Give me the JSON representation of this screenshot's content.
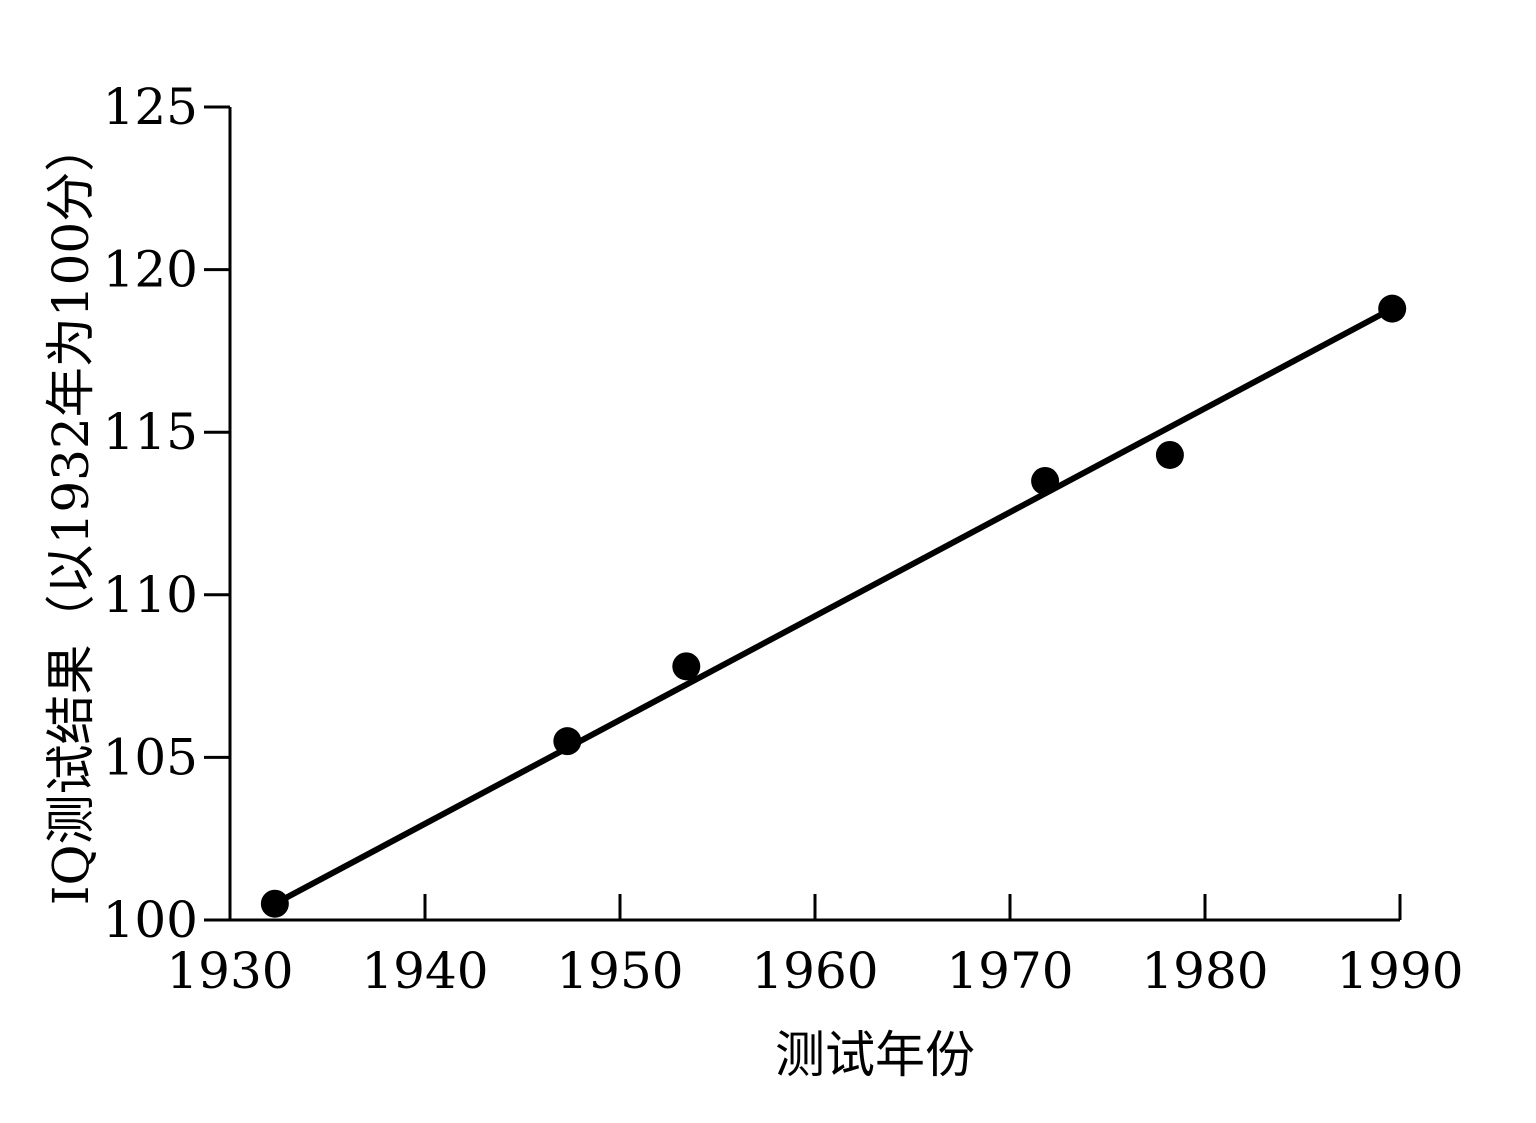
{
  "chart_data": {
    "type": "scatter",
    "title": "",
    "xlabel": "测试年份",
    "ylabel": "IQ测试结果（以1932年为100分）",
    "xlim": [
      1930,
      1990
    ],
    "ylim": [
      100,
      125
    ],
    "x_ticks": [
      1930,
      1940,
      1950,
      1960,
      1970,
      1980,
      1990
    ],
    "y_ticks": [
      100,
      105,
      110,
      115,
      120,
      125
    ],
    "x_tick_labels": [
      "1930",
      "1940",
      "1950",
      "1960",
      "1970",
      "1980",
      "1990"
    ],
    "y_tick_labels": [
      "100",
      "105",
      "110",
      "115",
      "120",
      "125"
    ],
    "grid": false,
    "legend": "none",
    "series": [
      {
        "type": "scatter",
        "x": [
          1932.3,
          1947.3,
          1953.4,
          1971.8,
          1978.2,
          1989.6
        ],
        "y": [
          100.5,
          105.5,
          107.8,
          113.5,
          114.3,
          118.8
        ],
        "color": "#000000"
      },
      {
        "type": "line",
        "x": [
          1932.3,
          1989.6
        ],
        "y": [
          100.5,
          118.8
        ],
        "color": "#000000"
      }
    ]
  }
}
